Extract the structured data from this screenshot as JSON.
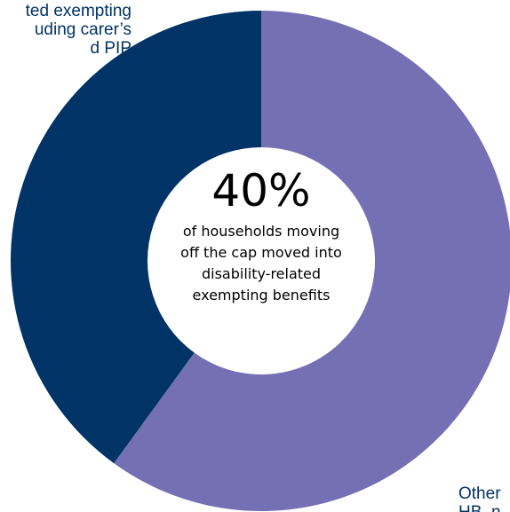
{
  "chart_data": {
    "type": "pie",
    "style": "donut",
    "slices": [
      {
        "label": "ted exempting\nuding carer’s\nd PIP",
        "value": 40,
        "color": "#003366"
      },
      {
        "label": "Other\nHB, n",
        "value": 60,
        "color": "#7470B3"
      }
    ],
    "center": {
      "value": "40%",
      "caption": "of households moving\noff the cap moved into\ndisability-related\nexempting benefits"
    },
    "label_color": "#003366",
    "background": "#FFFFFF"
  }
}
